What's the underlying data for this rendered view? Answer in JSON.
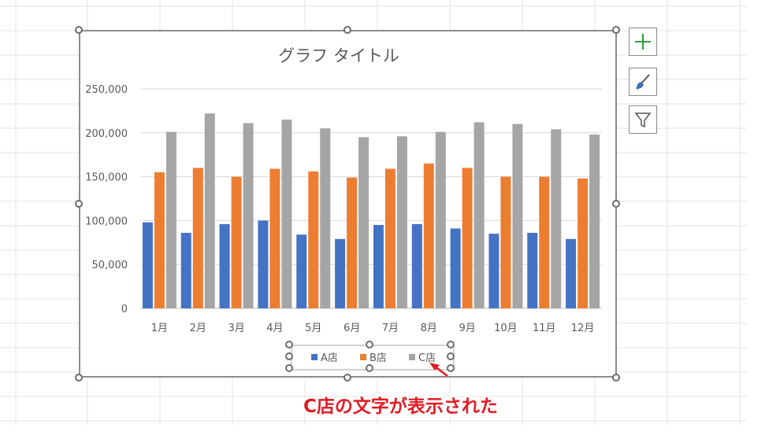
{
  "colors": {
    "series_a": "#4472c4",
    "series_b": "#ed7d31",
    "series_c": "#a5a5a5",
    "annotation": "#e31b23",
    "plus_icon": "#2e9e3f",
    "brush_icon": "#3a78c9"
  },
  "side_buttons": [
    {
      "name": "chart-elements-button",
      "icon": "plus-icon"
    },
    {
      "name": "chart-styles-button",
      "icon": "brush-icon"
    },
    {
      "name": "chart-filters-button",
      "icon": "filter-icon"
    }
  ],
  "annotation": {
    "text": "C店の文字が表示された"
  },
  "chart_data": {
    "type": "bar",
    "title": "グラフ タイトル",
    "categories": [
      "1月",
      "2月",
      "3月",
      "4月",
      "5月",
      "6月",
      "7月",
      "8月",
      "9月",
      "10月",
      "11月",
      "12月"
    ],
    "series": [
      {
        "name": "A店",
        "values": [
          98000,
          86000,
          96000,
          100000,
          84000,
          79000,
          95000,
          96000,
          91000,
          85000,
          86000,
          79000
        ]
      },
      {
        "name": "B店",
        "values": [
          155000,
          160000,
          150000,
          159000,
          156000,
          149000,
          159000,
          165000,
          160000,
          150000,
          150000,
          148000
        ]
      },
      {
        "name": "C店",
        "values": [
          201000,
          222000,
          211000,
          215000,
          205000,
          195000,
          196000,
          201000,
          212000,
          210000,
          204000,
          198000
        ]
      }
    ],
    "ylim": [
      0,
      250000
    ],
    "yticks": [
      "0",
      "50,000",
      "100,000",
      "150,000",
      "200,000",
      "250,000"
    ],
    "grid": true,
    "legend": "bottom"
  }
}
